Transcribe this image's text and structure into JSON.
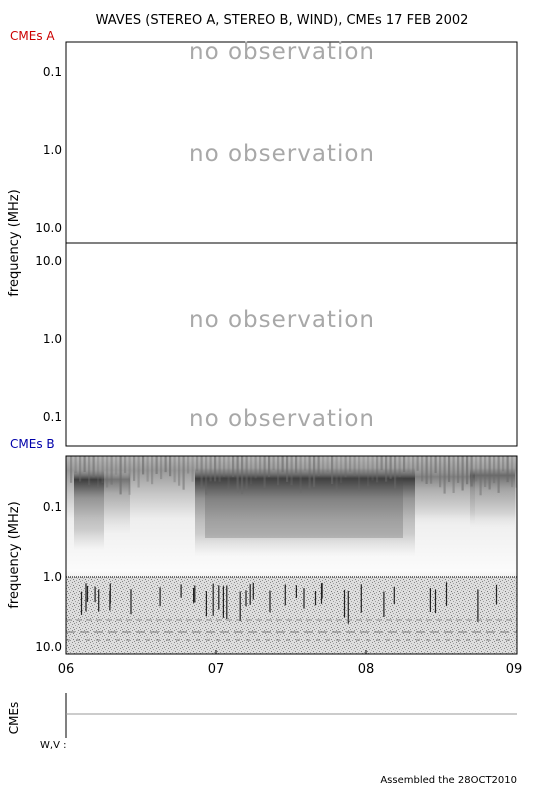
{
  "title": "WAVES (STEREO A, STEREO B, WIND), CMEs  17 FEB 2002",
  "footer": "Assembled the 28OCT2010",
  "colors": {
    "cmes_a": "#cc0000",
    "cmes_b": "#0000aa",
    "no_observation": "#a8a8a8",
    "axis": "#000000"
  },
  "chart_data": [
    {
      "type": "heatmap",
      "panel": "stereo-a",
      "corner_label": "CMEs A",
      "ylabel": "frequency (MHz)",
      "y_scale": "log",
      "y_ticks": [
        "0.1",
        "1.0",
        "10.0"
      ],
      "ylim": [
        10.0,
        0.06
      ],
      "annotations": [
        "no observation",
        "no observation"
      ]
    },
    {
      "type": "heatmap",
      "panel": "stereo-b",
      "ylabel": "",
      "y_scale": "log",
      "y_ticks": [
        "10.0",
        "1.0",
        "0.1"
      ],
      "ylim": [
        14.0,
        0.07
      ],
      "annotations": [
        "no observation",
        "no observation"
      ]
    },
    {
      "type": "heatmap",
      "panel": "wind",
      "corner_label": "CMEs B",
      "ylabel": "frequency (MHz)",
      "y_scale": "log",
      "y_ticks": [
        "0.1",
        "1.0",
        "10.0"
      ],
      "ylim": [
        12.0,
        0.035
      ],
      "x_ticks": [
        "06",
        "07",
        "08",
        "09"
      ]
    },
    {
      "type": "line",
      "panel": "cmes",
      "ylabel": "CMEs",
      "row_label": "W,V :"
    }
  ]
}
